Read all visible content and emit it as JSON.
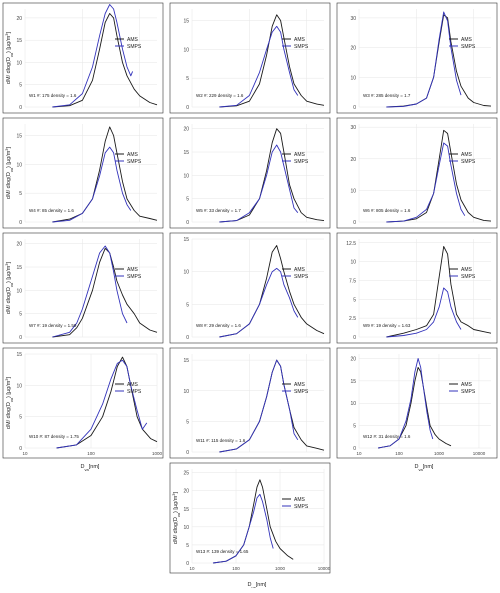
{
  "figure": {
    "axis_x_label_main": "D",
    "axis_x_label_sub": "va",
    "axis_x_label_unit": "[nm]",
    "axis_y_label": "dM/ dlog(D",
    "axis_y_label_sub": "va",
    "axis_y_label_unit": ") [µg/m",
    "axis_y_label_sup": "3",
    "axis_y_label_end": "]"
  },
  "colors": {
    "ams": "#1a1a1a",
    "smps": "#3333bb",
    "grid": "#e6e6e6",
    "frame": "#333333"
  },
  "chart_data": [
    {
      "type": "line",
      "xscale": "log",
      "annotation": "W1 #: 175  density = 1.6",
      "ylim": [
        0,
        22
      ],
      "yticks": [
        0,
        5,
        10,
        15,
        20
      ],
      "xlim": [
        10,
        2000
      ],
      "xticks": [],
      "xticklabels": [],
      "series": [
        {
          "name": "AMS",
          "x": [
            30,
            60,
            100,
            150,
            200,
            250,
            300,
            350,
            400,
            500,
            600,
            800,
            1000,
            1500,
            2000
          ],
          "y": [
            0,
            0.3,
            1.5,
            6,
            13,
            19,
            21,
            20,
            16,
            10,
            7,
            4,
            2.5,
            1,
            0.5
          ]
        },
        {
          "name": "SMPS",
          "x": [
            30,
            60,
            100,
            150,
            200,
            250,
            300,
            350,
            400,
            500,
            600,
            700,
            750
          ],
          "y": [
            0,
            0.5,
            3,
            9,
            16,
            21,
            23,
            22,
            19,
            13,
            9,
            7,
            8
          ]
        }
      ]
    },
    {
      "type": "line",
      "xscale": "log",
      "annotation": "W2 #: 229  density = 1.6",
      "ylim": [
        0,
        17
      ],
      "yticks": [
        0,
        5,
        10,
        15
      ],
      "xlim": [
        10,
        2000
      ],
      "xticks": [],
      "xticklabels": [],
      "series": [
        {
          "name": "AMS",
          "x": [
            30,
            60,
            100,
            150,
            200,
            250,
            300,
            350,
            400,
            500,
            600,
            800,
            1000,
            1500,
            2000
          ],
          "y": [
            0,
            0.2,
            1,
            4,
            9,
            14,
            16,
            15,
            12,
            7,
            4,
            2,
            1,
            0.5,
            0.3
          ]
        },
        {
          "name": "SMPS",
          "x": [
            30,
            60,
            100,
            150,
            200,
            250,
            300,
            350,
            400,
            500,
            600,
            700
          ],
          "y": [
            0,
            0.3,
            2,
            6,
            10,
            13,
            14,
            13,
            10,
            6,
            3,
            2
          ]
        }
      ]
    },
    {
      "type": "line",
      "xscale": "log",
      "annotation": "W3 #: 285  density = 1.7",
      "ylim": [
        0,
        33
      ],
      "yticks": [
        0,
        10,
        20,
        30
      ],
      "xlim": [
        10,
        2000
      ],
      "xticks": [],
      "xticklabels": [],
      "series": [
        {
          "name": "AMS",
          "x": [
            30,
            60,
            100,
            150,
            200,
            250,
            300,
            350,
            400,
            500,
            600,
            800,
            1000,
            1500,
            2000
          ],
          "y": [
            0,
            0.3,
            1,
            3,
            10,
            22,
            31,
            30,
            22,
            12,
            7,
            3,
            1.5,
            0.5,
            0.3
          ]
        },
        {
          "name": "SMPS",
          "x": [
            30,
            60,
            100,
            150,
            200,
            250,
            300,
            350,
            400,
            500,
            600
          ],
          "y": [
            0,
            0.2,
            1,
            3,
            10,
            23,
            32,
            29,
            20,
            9,
            4
          ]
        }
      ]
    },
    {
      "type": "line",
      "xscale": "log",
      "annotation": "W4 #: 85  density = 1.6",
      "ylim": [
        0,
        17
      ],
      "yticks": [
        0,
        5,
        10,
        15
      ],
      "xlim": [
        10,
        2000
      ],
      "xticks": [],
      "xticklabels": [],
      "series": [
        {
          "name": "AMS",
          "x": [
            30,
            60,
            100,
            150,
            200,
            250,
            300,
            350,
            400,
            500,
            600,
            800,
            1000,
            1500,
            2000
          ],
          "y": [
            0,
            0.5,
            1.5,
            4,
            9,
            14,
            16.5,
            15,
            12,
            7,
            4,
            2,
            1,
            0.6,
            0.3
          ]
        },
        {
          "name": "SMPS",
          "x": [
            30,
            60,
            100,
            150,
            200,
            250,
            300,
            350,
            400,
            500,
            600,
            700
          ],
          "y": [
            0,
            0.3,
            1.5,
            4,
            8,
            12,
            13,
            12,
            9,
            5,
            3,
            2
          ]
        }
      ]
    },
    {
      "type": "line",
      "xscale": "log",
      "annotation": "W5 #: 33  density = 1.7",
      "ylim": [
        0,
        21
      ],
      "yticks": [
        0,
        5,
        10,
        15,
        20
      ],
      "xlim": [
        10,
        2000
      ],
      "xticks": [],
      "xticklabels": [],
      "series": [
        {
          "name": "AMS",
          "x": [
            30,
            60,
            100,
            150,
            200,
            250,
            300,
            350,
            400,
            500,
            600,
            800,
            1000,
            1500,
            2000
          ],
          "y": [
            0,
            0.3,
            1.5,
            5,
            11,
            17,
            20,
            19,
            15,
            8,
            5,
            2,
            1,
            0.5,
            0.3
          ]
        },
        {
          "name": "SMPS",
          "x": [
            30,
            60,
            100,
            150,
            200,
            250,
            300,
            350,
            400,
            500,
            600,
            700
          ],
          "y": [
            0,
            0.3,
            2,
            5,
            10,
            15,
            16.5,
            15,
            12,
            7,
            3,
            2
          ]
        }
      ]
    },
    {
      "type": "line",
      "xscale": "log",
      "annotation": "W6 #: 805  density = 1.6",
      "ylim": [
        0,
        31
      ],
      "yticks": [
        0,
        10,
        20,
        30
      ],
      "xlim": [
        10,
        2000
      ],
      "xticks": [],
      "xticklabels": [],
      "series": [
        {
          "name": "AMS",
          "x": [
            30,
            60,
            100,
            150,
            200,
            250,
            300,
            350,
            400,
            500,
            600,
            800,
            1000,
            1500,
            2000
          ],
          "y": [
            0,
            0.3,
            1,
            3,
            9,
            20,
            29,
            28,
            22,
            12,
            7,
            3,
            1.5,
            0.5,
            0.3
          ]
        },
        {
          "name": "SMPS",
          "x": [
            30,
            60,
            100,
            150,
            200,
            250,
            300,
            350,
            400,
            500,
            600,
            700
          ],
          "y": [
            0,
            0.3,
            1.5,
            4,
            9,
            18,
            25,
            24,
            18,
            9,
            4,
            2
          ]
        }
      ]
    },
    {
      "type": "line",
      "xscale": "log",
      "annotation": "W7 #: 19  density = 1.59",
      "ylim": [
        0,
        21
      ],
      "yticks": [
        0,
        5,
        10,
        15,
        20
      ],
      "xlim": [
        10,
        2000
      ],
      "xticks": [],
      "xticklabels": [],
      "series": [
        {
          "name": "AMS",
          "x": [
            30,
            60,
            80,
            100,
            150,
            200,
            250,
            300,
            350,
            400,
            500,
            600,
            800,
            1000,
            1500,
            2000
          ],
          "y": [
            0,
            0.5,
            2,
            4,
            10,
            16,
            19,
            18,
            15,
            12,
            9,
            7,
            5,
            3,
            1.5,
            1
          ]
        },
        {
          "name": "SMPS",
          "x": [
            30,
            60,
            80,
            100,
            150,
            200,
            250,
            300,
            350,
            400,
            500,
            600
          ],
          "y": [
            0,
            1,
            3,
            6,
            13,
            18,
            19.5,
            18,
            14,
            10,
            5,
            3
          ]
        }
      ]
    },
    {
      "type": "line",
      "xscale": "log",
      "annotation": "W8 #: 29  density = 1.6",
      "ylim": [
        0,
        15
      ],
      "yticks": [
        0,
        5,
        10,
        15
      ],
      "xlim": [
        10,
        2000
      ],
      "xticks": [],
      "xticklabels": [],
      "series": [
        {
          "name": "AMS",
          "x": [
            30,
            60,
            100,
            150,
            200,
            250,
            300,
            350,
            400,
            500,
            600,
            800,
            1000,
            1500,
            2000
          ],
          "y": [
            0,
            0.5,
            2,
            5,
            9,
            13,
            14,
            12,
            10,
            7,
            5,
            3,
            2,
            1,
            0.5
          ]
        },
        {
          "name": "SMPS",
          "x": [
            30,
            60,
            100,
            150,
            200,
            250,
            300,
            350,
            400,
            500,
            600,
            700
          ],
          "y": [
            0,
            0.5,
            2,
            5,
            8,
            10,
            10.5,
            10,
            8,
            6,
            4,
            3
          ]
        }
      ]
    },
    {
      "type": "line",
      "xscale": "log",
      "annotation": "W9 #: 19  density = 1.63",
      "ylim": [
        0,
        13
      ],
      "yticks": [
        0,
        2.5,
        5,
        7.5,
        10,
        12.5
      ],
      "xlim": [
        10,
        2000
      ],
      "xticks": [],
      "xticklabels": [],
      "series": [
        {
          "name": "AMS",
          "x": [
            30,
            60,
            100,
            150,
            200,
            250,
            300,
            350,
            400,
            500,
            600,
            800,
            1000,
            1500,
            2000
          ],
          "y": [
            0,
            0.5,
            1,
            1.5,
            3,
            8,
            12,
            11,
            7,
            3,
            2,
            1.5,
            1,
            0.7,
            0.5
          ]
        },
        {
          "name": "SMPS",
          "x": [
            30,
            60,
            100,
            150,
            200,
            250,
            300,
            350,
            400,
            500,
            600
          ],
          "y": [
            0,
            0.2,
            0.5,
            1,
            2,
            4,
            6.5,
            6,
            4,
            2,
            1
          ]
        }
      ]
    },
    {
      "type": "line",
      "xscale": "log",
      "annotation": "W10 #: 87  density = 1.75",
      "ylim": [
        0,
        15
      ],
      "yticks": [
        0,
        5,
        10,
        15
      ],
      "xlim": [
        10,
        1000
      ],
      "xticks": [
        10,
        100,
        1000
      ],
      "xticklabels": [
        "10",
        "100",
        "1000"
      ],
      "series": [
        {
          "name": "AMS",
          "x": [
            30,
            60,
            100,
            150,
            200,
            250,
            300,
            350,
            400,
            500,
            600,
            800,
            1000
          ],
          "y": [
            0,
            0.5,
            2,
            5,
            9,
            13,
            14.5,
            13,
            10,
            5,
            3,
            1.5,
            1
          ]
        },
        {
          "name": "SMPS",
          "x": [
            30,
            60,
            100,
            150,
            200,
            250,
            300,
            350,
            400,
            500,
            600,
            700
          ],
          "y": [
            0,
            0.5,
            3,
            7,
            11,
            13.5,
            14,
            13,
            10,
            6,
            3,
            4
          ]
        }
      ]
    },
    {
      "type": "line",
      "xscale": "log",
      "annotation": "W11 #: 115  density = 1.6",
      "ylim": [
        0,
        16
      ],
      "yticks": [
        0,
        5,
        10,
        15
      ],
      "xlim": [
        10,
        2000
      ],
      "xticks": [],
      "xticklabels": [],
      "series": [
        {
          "name": "AMS",
          "x": [
            30,
            60,
            100,
            150,
            200,
            250,
            300,
            350,
            400,
            500,
            600,
            800,
            1000,
            1500,
            2000
          ],
          "y": [
            0,
            0.5,
            2,
            5,
            9,
            13,
            15,
            14,
            11,
            7,
            4,
            2,
            1,
            0.6,
            0.3
          ]
        },
        {
          "name": "SMPS",
          "x": [
            30,
            60,
            100,
            150,
            200,
            250,
            300,
            350,
            400,
            500,
            600,
            700
          ],
          "y": [
            0,
            0.5,
            2,
            5,
            9,
            13,
            15,
            14,
            11,
            7,
            3,
            2
          ]
        }
      ]
    },
    {
      "type": "line",
      "xscale": "log",
      "annotation": "W12 #: 31  density = 1.6",
      "ylim": [
        0,
        21
      ],
      "yticks": [
        0,
        5,
        10,
        15,
        20
      ],
      "xlim": [
        10,
        20000
      ],
      "xticks": [
        10,
        100,
        1000,
        10000
      ],
      "xticklabels": [
        "10",
        "100",
        "1000",
        "10000"
      ],
      "series": [
        {
          "name": "AMS",
          "x": [
            30,
            60,
            100,
            150,
            200,
            250,
            300,
            350,
            400,
            500,
            600,
            800,
            1000,
            1500,
            2000
          ],
          "y": [
            0,
            0.5,
            2,
            5,
            10,
            15,
            18,
            17,
            14,
            9,
            5,
            3,
            2,
            1,
            0.5
          ]
        },
        {
          "name": "SMPS",
          "x": [
            30,
            60,
            100,
            150,
            200,
            250,
            300,
            350,
            400,
            500,
            600,
            700
          ],
          "y": [
            0,
            0.5,
            2,
            6,
            11,
            17,
            20,
            18,
            14,
            8,
            4,
            2
          ]
        }
      ]
    },
    {
      "type": "line",
      "xscale": "log",
      "annotation": "W13 #: 139  density = 1.65",
      "ylim": [
        0,
        26
      ],
      "yticks": [
        0,
        5,
        10,
        15,
        20,
        25
      ],
      "xlim": [
        10,
        10000
      ],
      "xticks": [
        10,
        100,
        1000,
        10000
      ],
      "xticklabels": [
        "10",
        "100",
        "1000",
        "10000"
      ],
      "series": [
        {
          "name": "AMS",
          "x": [
            30,
            60,
            100,
            150,
            200,
            250,
            300,
            350,
            400,
            500,
            600,
            800,
            1000,
            1500,
            2000
          ],
          "y": [
            0,
            0.5,
            2,
            5,
            10,
            16,
            21,
            23,
            21,
            15,
            10,
            6,
            4,
            2,
            1
          ]
        },
        {
          "name": "SMPS",
          "x": [
            30,
            60,
            100,
            150,
            200,
            250,
            300,
            350,
            400,
            500,
            600,
            700
          ],
          "y": [
            0,
            0.5,
            2,
            5,
            10,
            14,
            18,
            19,
            17,
            12,
            7,
            4
          ]
        }
      ]
    }
  ]
}
